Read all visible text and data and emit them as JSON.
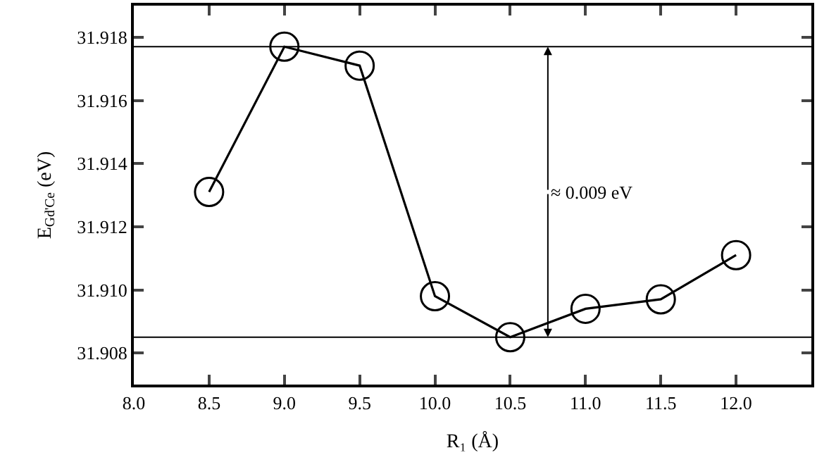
{
  "chart_data": {
    "type": "line",
    "xlabel": "R₁ (Å)",
    "ylabel": "E$_{Gd'Ce}$ (eV)",
    "x": [
      8.5,
      9.0,
      9.5,
      10.0,
      10.5,
      11.0,
      11.5,
      12.0
    ],
    "series": [
      {
        "color": "#000000",
        "values": [
          31.9131,
          31.9177,
          31.9171,
          31.9098,
          31.9085,
          31.9094,
          31.9097,
          31.9111
        ]
      }
    ],
    "marker": "circle",
    "line_style": "solid",
    "xlim": [
      8.0,
      12.5
    ],
    "xticks": [
      {
        "value": 8.0,
        "label": "8.0"
      },
      {
        "value": 8.5,
        "label": "8.5"
      },
      {
        "value": 9.0,
        "label": "9.0"
      },
      {
        "value": 9.5,
        "label": "9.5"
      },
      {
        "value": 10.0,
        "label": "10.0"
      },
      {
        "value": 10.5,
        "label": "10.5"
      },
      {
        "value": 11.0,
        "label": "11.0"
      },
      {
        "value": 11.5,
        "label": "11.5"
      },
      {
        "value": 12.0,
        "label": "12.0"
      }
    ],
    "ylim": [
      31.907,
      31.919
    ],
    "yticks": [
      {
        "value": 31.908,
        "label": "31.908"
      },
      {
        "value": 31.91,
        "label": "31.910"
      },
      {
        "value": 31.912,
        "label": "31.912"
      },
      {
        "value": 31.914,
        "label": "31.914"
      },
      {
        "value": 31.916,
        "label": "31.916"
      },
      {
        "value": 31.918,
        "label": "31.918"
      }
    ],
    "ref_lines": [
      {
        "axis": "y",
        "value": 31.9177,
        "color": "#000000"
      },
      {
        "axis": "y",
        "value": 31.9085,
        "color": "#000000"
      }
    ],
    "annotations": [
      {
        "text": "≈ 0.009 eV",
        "x": 10.75,
        "y": 31.9177
      }
    ]
  }
}
